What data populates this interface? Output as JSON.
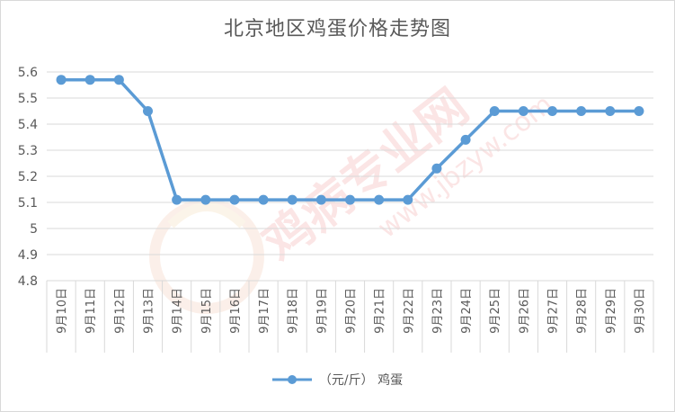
{
  "chart_data": {
    "type": "line",
    "title": "北京地区鸡蛋价格走势图",
    "categories": [
      "9月10日",
      "9月11日",
      "9月12日",
      "9月13日",
      "9月14日",
      "9月15日",
      "9月16日",
      "9月17日",
      "9月18日",
      "9月19日",
      "9月20日",
      "9月21日",
      "9月22日",
      "9月23日",
      "9月24日",
      "9月25日",
      "9月26日",
      "9月27日",
      "9月28日",
      "9月29日",
      "9月30日"
    ],
    "series": [
      {
        "name": "（元/斤） 鸡蛋",
        "values": [
          5.57,
          5.57,
          5.57,
          5.45,
          5.11,
          5.11,
          5.11,
          5.11,
          5.11,
          5.11,
          5.11,
          5.11,
          5.11,
          5.23,
          5.34,
          5.45,
          5.45,
          5.45,
          5.45,
          5.45,
          5.45
        ],
        "color": "#5b9bd5"
      }
    ],
    "y_ticks": [
      "4.8",
      "4.9",
      "5",
      "5.1",
      "5.2",
      "5.3",
      "5.4",
      "5.5",
      "5.6"
    ],
    "ylim": [
      4.8,
      5.6
    ],
    "grid": true,
    "legend_position": "bottom"
  },
  "watermark": {
    "text_cn": "鸡病专业网",
    "text_url": "www.jbzyw.com"
  }
}
